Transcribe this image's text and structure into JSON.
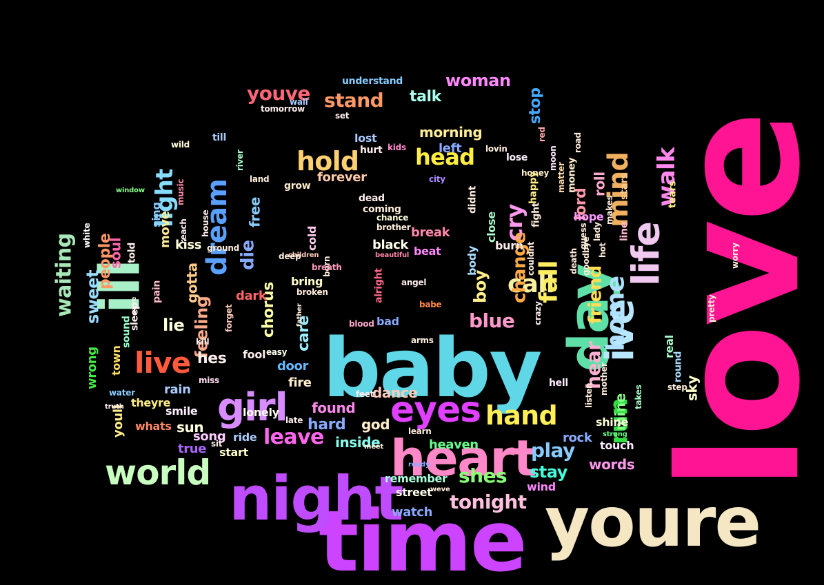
{
  "background": "#000000",
  "words": [
    {
      "text": "love",
      "color": "#ff1493",
      "rot": true
    },
    {
      "text": "time",
      "color": "#cc44ff"
    },
    {
      "text": "youre",
      "color": "#f5e6c4"
    },
    {
      "text": "baby",
      "color": "#5fd7e6"
    },
    {
      "text": "night",
      "color": "#c04cff"
    },
    {
      "text": "heart",
      "color": "#ff88c8"
    },
    {
      "text": "day",
      "color": "#5fe0a8",
      "rot": true
    },
    {
      "text": "ill",
      "color": "#a8f0c8",
      "rot": true
    },
    {
      "text": "ive",
      "color": "#b8e8ff",
      "rot": true
    },
    {
      "text": "life",
      "color": "#f0c8f0",
      "rot": true
    },
    {
      "text": "eyes",
      "color": "#e040ff"
    },
    {
      "text": "girl",
      "color": "#d88cff"
    },
    {
      "text": "world",
      "color": "#c8ffc0"
    },
    {
      "text": "dream",
      "color": "#5aa0ff",
      "rot": true
    },
    {
      "text": "live",
      "color": "#ff5a3c"
    },
    {
      "text": "hand",
      "color": "#ffee55"
    },
    {
      "text": "home",
      "color": "#b0e0ff",
      "rot": true
    },
    {
      "text": "mind",
      "color": "#f0b060",
      "rot": true
    },
    {
      "text": "walk",
      "color": "#ff88ee",
      "rot": true
    },
    {
      "text": "light",
      "color": "#88ddff",
      "rot": true
    },
    {
      "text": "hold",
      "color": "#ffd070"
    },
    {
      "text": "head",
      "color": "#ffee40"
    },
    {
      "text": "call",
      "color": "#f8f0a0"
    },
    {
      "text": "fall",
      "color": "#ffee60",
      "rot": true
    },
    {
      "text": "run",
      "color": "#33dd44",
      "rot": true
    },
    {
      "text": "friend",
      "color": "#ffdd55",
      "rot": true
    },
    {
      "text": "hear",
      "color": "#ffb0d0",
      "rot": true
    },
    {
      "text": "waiting",
      "color": "#a8e8b8",
      "rot": true
    },
    {
      "text": "leave",
      "color": "#ff66ee"
    },
    {
      "text": "blue",
      "color": "#ff99cc"
    },
    {
      "text": "play",
      "color": "#88ccff"
    },
    {
      "text": "stand",
      "color": "#ff9966"
    },
    {
      "text": "shes",
      "color": "#88ff77"
    },
    {
      "text": "stay",
      "color": "#44ffdd"
    },
    {
      "text": "tonight",
      "color": "#ffc0e0"
    },
    {
      "text": "youve",
      "color": "#ff6677"
    },
    {
      "text": "woman",
      "color": "#ff88ff"
    },
    {
      "text": "people",
      "color": "#ff9966",
      "rot": true
    },
    {
      "text": "sweet",
      "color": "#99ddff",
      "rot": true
    },
    {
      "text": "cry",
      "color": "#ff99ee",
      "rot": true
    },
    {
      "text": "change",
      "color": "#ffaa44",
      "rot": true
    },
    {
      "text": "feeling",
      "color": "#ffaa88",
      "rot": true
    },
    {
      "text": "gotta",
      "color": "#ffcc88",
      "rot": true
    },
    {
      "text": "chorus",
      "color": "#ffffaa",
      "rot": true
    },
    {
      "text": "die",
      "color": "#88aaff",
      "rot": true
    },
    {
      "text": "free",
      "color": "#88ccff",
      "rot": true
    },
    {
      "text": "boy",
      "color": "#ffee88",
      "rot": true
    },
    {
      "text": "lord",
      "color": "#ff99aa",
      "rot": true
    },
    {
      "text": "roll",
      "color": "#ffaacc",
      "rot": true
    },
    {
      "text": "care",
      "color": "#99eeff",
      "rot": true
    },
    {
      "text": "soul",
      "color": "#ff66aa",
      "rot": true
    },
    {
      "text": "hes",
      "color": "#ffeeee"
    },
    {
      "text": "lie",
      "color": "#ffffdd"
    },
    {
      "text": "talk",
      "color": "#aaffee"
    },
    {
      "text": "stop",
      "color": "#44aaff",
      "rot": true
    },
    {
      "text": "morning",
      "color": "#ffee99"
    },
    {
      "text": "dance",
      "color": "#ffccbb"
    },
    {
      "text": "found",
      "color": "#ff88ee"
    },
    {
      "text": "hard",
      "color": "#88aaff"
    },
    {
      "text": "god",
      "color": "#ffeecc"
    },
    {
      "text": "rain",
      "color": "#aaccff"
    },
    {
      "text": "sun",
      "color": "#ffffdd"
    },
    {
      "text": "smile",
      "color": "#ffeeff"
    },
    {
      "text": "fire",
      "color": "#ffeecc"
    },
    {
      "text": "door",
      "color": "#66bbff"
    },
    {
      "text": "bring",
      "color": "#ffffcc"
    },
    {
      "text": "dark",
      "color": "#ff6666"
    },
    {
      "text": "black",
      "color": "#ffffee"
    },
    {
      "text": "break",
      "color": "#ff88aa"
    },
    {
      "text": "inside",
      "color": "#88ffee"
    },
    {
      "text": "heaven",
      "color": "#66ff88"
    },
    {
      "text": "remember",
      "color": "#aaffdd"
    },
    {
      "text": "street",
      "color": "#ffffee"
    },
    {
      "text": "watch",
      "color": "#88aaff"
    },
    {
      "text": "words",
      "color": "#ff99ee"
    },
    {
      "text": "rock",
      "color": "#88aaff"
    },
    {
      "text": "mine",
      "color": "#88ff88",
      "rot": true
    },
    {
      "text": "sky",
      "color": "#ffffcc",
      "rot": true
    },
    {
      "text": "forever",
      "color": "#ffccaa"
    },
    {
      "text": "lost",
      "color": "#aaccff"
    },
    {
      "text": "left",
      "color": "#88aaff"
    },
    {
      "text": "kiss",
      "color": "#ffffdd"
    },
    {
      "text": "move",
      "color": "#ffee99",
      "rot": true
    },
    {
      "text": "sing",
      "color": "#88ccff",
      "rot": true
    },
    {
      "text": "wrong",
      "color": "#44ee44",
      "rot": true
    },
    {
      "text": "youll",
      "color": "#ffee88",
      "rot": true
    },
    {
      "text": "town",
      "color": "#ffdd66",
      "rot": true
    },
    {
      "text": "song",
      "color": "#ffccff"
    },
    {
      "text": "ride",
      "color": "#aaccff"
    },
    {
      "text": "start",
      "color": "#ffffcc"
    },
    {
      "text": "true",
      "color": "#aa66ff"
    },
    {
      "text": "lonely",
      "color": "#ffffee"
    },
    {
      "text": "theyre",
      "color": "#ffee88"
    },
    {
      "text": "whats",
      "color": "#ff8866"
    },
    {
      "text": "wind",
      "color": "#ff88ff"
    },
    {
      "text": "understand",
      "color": "#88ccff"
    },
    {
      "text": "coming",
      "color": "#ffeedd"
    },
    {
      "text": "dead",
      "color": "#ffeeee"
    },
    {
      "text": "grow",
      "color": "#ffeecc"
    },
    {
      "text": "hope",
      "color": "#ff99ff"
    },
    {
      "text": "shine",
      "color": "#ffffdd"
    },
    {
      "text": "touch",
      "color": "#ffeeff"
    },
    {
      "text": "hell",
      "color": "#ffeeff"
    },
    {
      "text": "beat",
      "color": "#ff88ff"
    },
    {
      "text": "bad",
      "color": "#88aaff"
    },
    {
      "text": "fool",
      "color": "#ffeeee"
    },
    {
      "text": "close",
      "color": "#aaffcc",
      "rot": true
    },
    {
      "text": "burn",
      "color": "#ffeeee"
    },
    {
      "text": "cold",
      "color": "#ffccee",
      "rot": true
    },
    {
      "text": "body",
      "color": "#aaddff",
      "rot": true
    },
    {
      "text": "lose",
      "color": "#ffeeff"
    },
    {
      "text": "till",
      "color": "#aaccff"
    },
    {
      "text": "wild",
      "color": "#ffffdd"
    },
    {
      "text": "tears",
      "color": "#ffee88",
      "rot": true
    },
    {
      "text": "stars",
      "color": "#ffcc88",
      "rot": true
    },
    {
      "text": "line",
      "color": "#ffbbcc",
      "rot": true
    },
    {
      "text": "money",
      "color": "#ffeecc",
      "rot": true
    },
    {
      "text": "hurt",
      "color": "#ffeeee"
    },
    {
      "text": "easy",
      "color": "#ffffee"
    },
    {
      "text": "told",
      "color": "#ffeeee",
      "rot": true
    },
    {
      "text": "white",
      "color": "#ffffff",
      "rot": true
    },
    {
      "text": "fight",
      "color": "#ffeedd",
      "rot": true
    },
    {
      "text": "didnt",
      "color": "#ffeedd",
      "rot": true
    },
    {
      "text": "kill",
      "color": "#ffeeee"
    },
    {
      "text": "pain",
      "color": "#ffbbcc",
      "rot": true
    },
    {
      "text": "sleep",
      "color": "#ffeeee",
      "rot": true
    },
    {
      "text": "sound",
      "color": "#99ffcc",
      "rot": true
    },
    {
      "text": "matter",
      "color": "#ffddaa",
      "rot": true
    },
    {
      "text": "moon",
      "color": "#ffeeff",
      "rot": true
    },
    {
      "text": "honey",
      "color": "#ffeecc"
    },
    {
      "text": "round",
      "color": "#aaddff",
      "rot": true
    },
    {
      "text": "real",
      "color": "#aaffcc",
      "rot": true
    },
    {
      "text": "tomorrow",
      "color": "#ffeeee"
    },
    {
      "text": "crazy",
      "color": "#ffeeee",
      "rot": true
    },
    {
      "text": "set",
      "color": "#ffeeee"
    },
    {
      "text": "wall",
      "color": "#aaccff"
    },
    {
      "text": "miss",
      "color": "#ffddee"
    },
    {
      "text": "alright",
      "color": "#ff6688",
      "rot": true
    },
    {
      "text": "children",
      "color": "#ffccbb"
    },
    {
      "text": "deep",
      "color": "#ffeedd"
    },
    {
      "text": "arms",
      "color": "#ffeedd"
    },
    {
      "text": "city",
      "color": "#aa88ff"
    },
    {
      "text": "babe",
      "color": "#ff8844"
    },
    {
      "text": "kids",
      "color": "#ff88cc"
    },
    {
      "text": "angel",
      "color": "#ffeeee"
    },
    {
      "text": "brother",
      "color": "#ffeedd"
    },
    {
      "text": "chance",
      "color": "#ffffdd"
    },
    {
      "text": "beautiful",
      "color": "#ff88aa"
    },
    {
      "text": "blood",
      "color": "#ffaacc"
    },
    {
      "text": "feet",
      "color": "#ffeeee"
    },
    {
      "text": "water",
      "color": "#88ccff"
    },
    {
      "text": "truth",
      "color": "#ffeeee"
    },
    {
      "text": "music",
      "color": "#ff88aa",
      "rot": true
    },
    {
      "text": "ground",
      "color": "#ffeedd"
    },
    {
      "text": "reach",
      "color": "#ffeeee",
      "rot": true
    },
    {
      "text": "house",
      "color": "#ffeeee",
      "rot": true
    },
    {
      "text": "land",
      "color": "#ffeedd"
    },
    {
      "text": "window",
      "color": "#88ff88"
    },
    {
      "text": "river",
      "color": "#aaffcc",
      "rot": true
    },
    {
      "text": "makes",
      "color": "#ffeedd",
      "rot": true
    },
    {
      "text": "hot",
      "color": "#ffeedd",
      "rot": true
    },
    {
      "text": "lady",
      "color": "#ffeedd",
      "rot": true
    },
    {
      "text": "guess",
      "color": "#ffeedd",
      "rot": true
    },
    {
      "text": "pretty",
      "color": "#ffeedd",
      "rot": true
    },
    {
      "text": "worry",
      "color": "#ffeedd",
      "rot": true
    },
    {
      "text": "listen",
      "color": "#ffeedd",
      "rot": true
    },
    {
      "text": "step",
      "color": "#ffeedd"
    },
    {
      "text": "takes",
      "color": "#aaffcc",
      "rot": true
    },
    {
      "text": "strong",
      "color": "#66ff88"
    },
    {
      "text": "learn",
      "color": "#ffeedd"
    },
    {
      "text": "meet",
      "color": "#ffeedd"
    },
    {
      "text": "weve",
      "color": "#ffeedd"
    },
    {
      "text": "ready",
      "color": "#88aaff"
    },
    {
      "text": "late",
      "color": "#ffeeee"
    },
    {
      "text": "sit",
      "color": "#ffeeee"
    },
    {
      "text": "save",
      "color": "#ffeeee",
      "rot": true
    },
    {
      "text": "forget",
      "color": "#ffccbb",
      "rot": true
    },
    {
      "text": "father",
      "color": "#ffeedd",
      "rot": true
    },
    {
      "text": "born",
      "color": "#ffeedd",
      "rot": true
    },
    {
      "text": "broken",
      "color": "#ffeedd"
    },
    {
      "text": "breath",
      "color": "#ff99bb"
    },
    {
      "text": "mother",
      "color": "#ffeedd",
      "rot": true
    },
    {
      "text": "goodbye",
      "color": "#ffeedd",
      "rot": true
    },
    {
      "text": "death",
      "color": "#ffeedd",
      "rot": true
    },
    {
      "text": "couldnt",
      "color": "#ffeedd",
      "rot": true
    },
    {
      "text": "happy",
      "color": "#ffee88",
      "rot": true
    },
    {
      "text": "lovin",
      "color": "#ffeedd"
    },
    {
      "text": "red",
      "color": "#ffaaaa",
      "rot": true
    },
    {
      "text": "road",
      "color": "#ffeedd",
      "rot": true
    }
  ]
}
